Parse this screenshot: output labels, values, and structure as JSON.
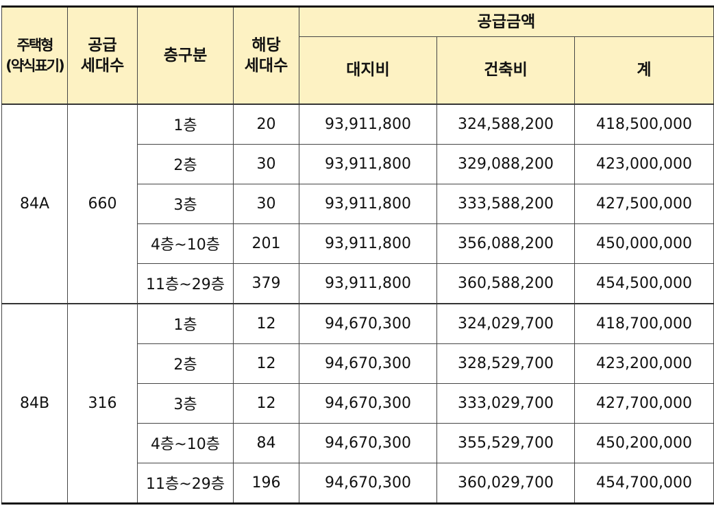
{
  "header": {
    "housing_type": [
      "주택형",
      "(약식표기)"
    ],
    "supply_units": [
      "공급",
      "세대수"
    ],
    "floor_class": "층구분",
    "applicable_units": [
      "해당",
      "세대수"
    ],
    "supply_amount": "공급금액",
    "land_cost": "대지비",
    "building_cost": "건축비",
    "total": "계"
  },
  "groups": [
    {
      "type": "84A",
      "supply_units": "660",
      "rows": [
        {
          "floor": "1층",
          "units": "20",
          "land": "93,911,800",
          "building": "324,588,200",
          "total": "418,500,000"
        },
        {
          "floor": "2층",
          "units": "30",
          "land": "93,911,800",
          "building": "329,088,200",
          "total": "423,000,000"
        },
        {
          "floor": "3층",
          "units": "30",
          "land": "93,911,800",
          "building": "333,588,200",
          "total": "427,500,000"
        },
        {
          "floor": "4층~10층",
          "units": "201",
          "land": "93,911,800",
          "building": "356,088,200",
          "total": "450,000,000"
        },
        {
          "floor": "11층~29층",
          "units": "379",
          "land": "93,911,800",
          "building": "360,588,200",
          "total": "454,500,000"
        }
      ]
    },
    {
      "type": "84B",
      "supply_units": "316",
      "rows": [
        {
          "floor": "1층",
          "units": "12",
          "land": "94,670,300",
          "building": "324,029,700",
          "total": "418,700,000"
        },
        {
          "floor": "2층",
          "units": "12",
          "land": "94,670,300",
          "building": "328,529,700",
          "total": "423,200,000"
        },
        {
          "floor": "3층",
          "units": "12",
          "land": "94,670,300",
          "building": "333,029,700",
          "total": "427,700,000"
        },
        {
          "floor": "4층~10층",
          "units": "84",
          "land": "94,670,300",
          "building": "355,529,700",
          "total": "450,200,000"
        },
        {
          "floor": "11층~29층",
          "units": "196",
          "land": "94,670,300",
          "building": "360,029,700",
          "total": "454,700,000"
        }
      ]
    }
  ]
}
